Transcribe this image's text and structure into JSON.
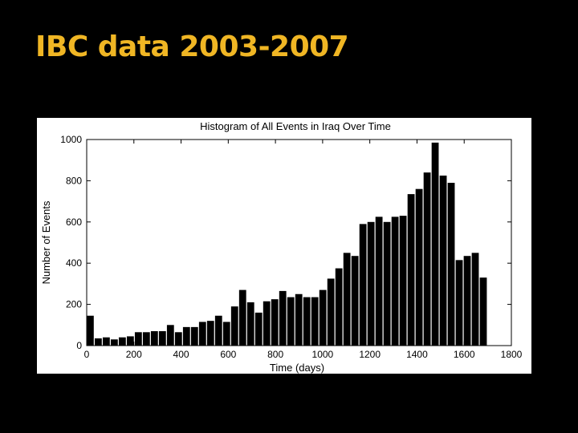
{
  "slide": {
    "title": "IBC data 2003-2007"
  },
  "colors": {
    "background": "#000000",
    "title": "#f0b624",
    "panel": "#ffffff",
    "bars": "#000000"
  },
  "chart_data": {
    "type": "bar",
    "title": "Histogram of All Events in Iraq Over Time",
    "xlabel": "Time (days)",
    "ylabel": "Number of Events",
    "xlim": [
      0,
      1800
    ],
    "ylim": [
      0,
      1000
    ],
    "xticks": [
      0,
      200,
      400,
      600,
      800,
      1000,
      1200,
      1400,
      1600,
      1800
    ],
    "yticks": [
      0,
      200,
      400,
      600,
      800,
      1000
    ],
    "grid": false,
    "bin_edges": [
      0,
      34,
      68,
      102,
      136,
      170,
      204,
      238,
      272,
      306,
      340,
      374,
      408,
      442,
      476,
      510,
      544,
      578,
      612,
      646,
      680,
      714,
      748,
      782,
      816,
      850,
      884,
      918,
      952,
      986,
      1020,
      1054,
      1088,
      1122,
      1156,
      1190,
      1224,
      1258,
      1292,
      1326,
      1360,
      1394,
      1428,
      1462,
      1496,
      1530,
      1564,
      1598,
      1632,
      1666,
      1700,
      1734
    ],
    "values": [
      145,
      35,
      40,
      30,
      40,
      45,
      65,
      65,
      70,
      70,
      100,
      65,
      90,
      90,
      115,
      120,
      145,
      115,
      190,
      270,
      210,
      160,
      215,
      225,
      265,
      235,
      250,
      235,
      235,
      270,
      325,
      375,
      450,
      435,
      590,
      600,
      625,
      600,
      625,
      630,
      735,
      760,
      840,
      985,
      825,
      790,
      415,
      435,
      450,
      330,
      0
    ]
  }
}
